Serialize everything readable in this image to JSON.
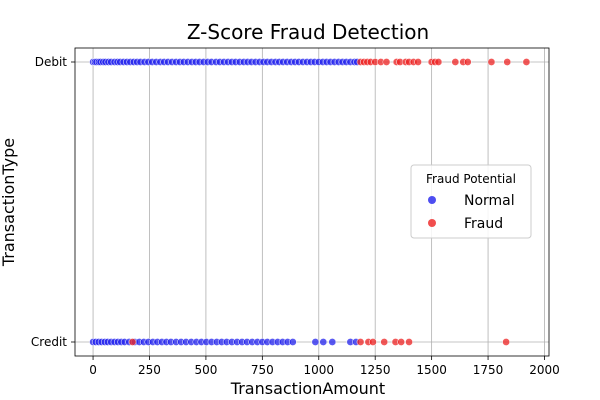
{
  "chart_data": {
    "type": "scatter",
    "title": "Z-Score Fraud Detection",
    "xlabel": "TransactionAmount",
    "ylabel": "TransactionType",
    "xlim": [
      -80,
      2020
    ],
    "x_ticks": [
      0,
      250,
      500,
      750,
      1000,
      1250,
      1500,
      1750,
      2000
    ],
    "y_categories": [
      "Credit",
      "Debit"
    ],
    "grid": true,
    "legend": {
      "title": "Fraud Potential",
      "placement": "center-right",
      "entries": [
        "Normal",
        "Fraud"
      ]
    },
    "colors": {
      "Normal": "#2222ee",
      "Fraud": "#ee2222"
    },
    "series": [
      {
        "name": "Normal",
        "points": [
          {
            "x": 0,
            "y": "Debit"
          },
          {
            "x": 8,
            "y": "Debit"
          },
          {
            "x": 15,
            "y": "Debit"
          },
          {
            "x": 25,
            "y": "Debit"
          },
          {
            "x": 33,
            "y": "Debit"
          },
          {
            "x": 45,
            "y": "Debit"
          },
          {
            "x": 55,
            "y": "Debit"
          },
          {
            "x": 68,
            "y": "Debit"
          },
          {
            "x": 80,
            "y": "Debit"
          },
          {
            "x": 95,
            "y": "Debit"
          },
          {
            "x": 108,
            "y": "Debit"
          },
          {
            "x": 120,
            "y": "Debit"
          },
          {
            "x": 135,
            "y": "Debit"
          },
          {
            "x": 150,
            "y": "Debit"
          },
          {
            "x": 165,
            "y": "Debit"
          },
          {
            "x": 180,
            "y": "Debit"
          },
          {
            "x": 195,
            "y": "Debit"
          },
          {
            "x": 210,
            "y": "Debit"
          },
          {
            "x": 228,
            "y": "Debit"
          },
          {
            "x": 245,
            "y": "Debit"
          },
          {
            "x": 262,
            "y": "Debit"
          },
          {
            "x": 280,
            "y": "Debit"
          },
          {
            "x": 298,
            "y": "Debit"
          },
          {
            "x": 315,
            "y": "Debit"
          },
          {
            "x": 332,
            "y": "Debit"
          },
          {
            "x": 350,
            "y": "Debit"
          },
          {
            "x": 368,
            "y": "Debit"
          },
          {
            "x": 385,
            "y": "Debit"
          },
          {
            "x": 402,
            "y": "Debit"
          },
          {
            "x": 420,
            "y": "Debit"
          },
          {
            "x": 438,
            "y": "Debit"
          },
          {
            "x": 455,
            "y": "Debit"
          },
          {
            "x": 472,
            "y": "Debit"
          },
          {
            "x": 490,
            "y": "Debit"
          },
          {
            "x": 508,
            "y": "Debit"
          },
          {
            "x": 525,
            "y": "Debit"
          },
          {
            "x": 545,
            "y": "Debit"
          },
          {
            "x": 562,
            "y": "Debit"
          },
          {
            "x": 580,
            "y": "Debit"
          },
          {
            "x": 598,
            "y": "Debit"
          },
          {
            "x": 615,
            "y": "Debit"
          },
          {
            "x": 632,
            "y": "Debit"
          },
          {
            "x": 650,
            "y": "Debit"
          },
          {
            "x": 668,
            "y": "Debit"
          },
          {
            "x": 685,
            "y": "Debit"
          },
          {
            "x": 702,
            "y": "Debit"
          },
          {
            "x": 720,
            "y": "Debit"
          },
          {
            "x": 738,
            "y": "Debit"
          },
          {
            "x": 755,
            "y": "Debit"
          },
          {
            "x": 772,
            "y": "Debit"
          },
          {
            "x": 790,
            "y": "Debit"
          },
          {
            "x": 808,
            "y": "Debit"
          },
          {
            "x": 825,
            "y": "Debit"
          },
          {
            "x": 842,
            "y": "Debit"
          },
          {
            "x": 860,
            "y": "Debit"
          },
          {
            "x": 878,
            "y": "Debit"
          },
          {
            "x": 895,
            "y": "Debit"
          },
          {
            "x": 912,
            "y": "Debit"
          },
          {
            "x": 930,
            "y": "Debit"
          },
          {
            "x": 948,
            "y": "Debit"
          },
          {
            "x": 965,
            "y": "Debit"
          },
          {
            "x": 982,
            "y": "Debit"
          },
          {
            "x": 1000,
            "y": "Debit"
          },
          {
            "x": 1018,
            "y": "Debit"
          },
          {
            "x": 1035,
            "y": "Debit"
          },
          {
            "x": 1052,
            "y": "Debit"
          },
          {
            "x": 1070,
            "y": "Debit"
          },
          {
            "x": 1088,
            "y": "Debit"
          },
          {
            "x": 1105,
            "y": "Debit"
          },
          {
            "x": 1122,
            "y": "Debit"
          },
          {
            "x": 1140,
            "y": "Debit"
          },
          {
            "x": 1158,
            "y": "Debit"
          },
          {
            "x": 1170,
            "y": "Debit"
          },
          {
            "x": 0,
            "y": "Credit"
          },
          {
            "x": 12,
            "y": "Credit"
          },
          {
            "x": 25,
            "y": "Credit"
          },
          {
            "x": 38,
            "y": "Credit"
          },
          {
            "x": 52,
            "y": "Credit"
          },
          {
            "x": 65,
            "y": "Credit"
          },
          {
            "x": 80,
            "y": "Credit"
          },
          {
            "x": 95,
            "y": "Credit"
          },
          {
            "x": 110,
            "y": "Credit"
          },
          {
            "x": 125,
            "y": "Credit"
          },
          {
            "x": 140,
            "y": "Credit"
          },
          {
            "x": 160,
            "y": "Credit"
          },
          {
            "x": 185,
            "y": "Credit"
          },
          {
            "x": 205,
            "y": "Credit"
          },
          {
            "x": 225,
            "y": "Credit"
          },
          {
            "x": 245,
            "y": "Credit"
          },
          {
            "x": 265,
            "y": "Credit"
          },
          {
            "x": 285,
            "y": "Credit"
          },
          {
            "x": 305,
            "y": "Credit"
          },
          {
            "x": 325,
            "y": "Credit"
          },
          {
            "x": 345,
            "y": "Credit"
          },
          {
            "x": 368,
            "y": "Credit"
          },
          {
            "x": 390,
            "y": "Credit"
          },
          {
            "x": 412,
            "y": "Credit"
          },
          {
            "x": 435,
            "y": "Credit"
          },
          {
            "x": 458,
            "y": "Credit"
          },
          {
            "x": 480,
            "y": "Credit"
          },
          {
            "x": 502,
            "y": "Credit"
          },
          {
            "x": 525,
            "y": "Credit"
          },
          {
            "x": 548,
            "y": "Credit"
          },
          {
            "x": 570,
            "y": "Credit"
          },
          {
            "x": 592,
            "y": "Credit"
          },
          {
            "x": 615,
            "y": "Credit"
          },
          {
            "x": 638,
            "y": "Credit"
          },
          {
            "x": 660,
            "y": "Credit"
          },
          {
            "x": 682,
            "y": "Credit"
          },
          {
            "x": 705,
            "y": "Credit"
          },
          {
            "x": 728,
            "y": "Credit"
          },
          {
            "x": 750,
            "y": "Credit"
          },
          {
            "x": 772,
            "y": "Credit"
          },
          {
            "x": 795,
            "y": "Credit"
          },
          {
            "x": 818,
            "y": "Credit"
          },
          {
            "x": 840,
            "y": "Credit"
          },
          {
            "x": 862,
            "y": "Credit"
          },
          {
            "x": 885,
            "y": "Credit"
          },
          {
            "x": 985,
            "y": "Credit"
          },
          {
            "x": 1020,
            "y": "Credit"
          },
          {
            "x": 1060,
            "y": "Credit"
          },
          {
            "x": 1140,
            "y": "Credit"
          },
          {
            "x": 1165,
            "y": "Credit"
          }
        ]
      },
      {
        "name": "Fraud",
        "points": [
          {
            "x": 1185,
            "y": "Debit"
          },
          {
            "x": 1200,
            "y": "Debit"
          },
          {
            "x": 1215,
            "y": "Debit"
          },
          {
            "x": 1230,
            "y": "Debit"
          },
          {
            "x": 1250,
            "y": "Debit"
          },
          {
            "x": 1275,
            "y": "Debit"
          },
          {
            "x": 1300,
            "y": "Debit"
          },
          {
            "x": 1345,
            "y": "Debit"
          },
          {
            "x": 1360,
            "y": "Debit"
          },
          {
            "x": 1385,
            "y": "Debit"
          },
          {
            "x": 1400,
            "y": "Debit"
          },
          {
            "x": 1420,
            "y": "Debit"
          },
          {
            "x": 1440,
            "y": "Debit"
          },
          {
            "x": 1500,
            "y": "Debit"
          },
          {
            "x": 1515,
            "y": "Debit"
          },
          {
            "x": 1530,
            "y": "Debit"
          },
          {
            "x": 1605,
            "y": "Debit"
          },
          {
            "x": 1640,
            "y": "Debit"
          },
          {
            "x": 1660,
            "y": "Debit"
          },
          {
            "x": 1765,
            "y": "Debit"
          },
          {
            "x": 1835,
            "y": "Debit"
          },
          {
            "x": 1920,
            "y": "Debit"
          },
          {
            "x": 175,
            "y": "Credit"
          },
          {
            "x": 1185,
            "y": "Credit"
          },
          {
            "x": 1220,
            "y": "Credit"
          },
          {
            "x": 1240,
            "y": "Credit"
          },
          {
            "x": 1290,
            "y": "Credit"
          },
          {
            "x": 1340,
            "y": "Credit"
          },
          {
            "x": 1365,
            "y": "Credit"
          },
          {
            "x": 1400,
            "y": "Credit"
          },
          {
            "x": 1830,
            "y": "Credit"
          }
        ]
      }
    ]
  }
}
